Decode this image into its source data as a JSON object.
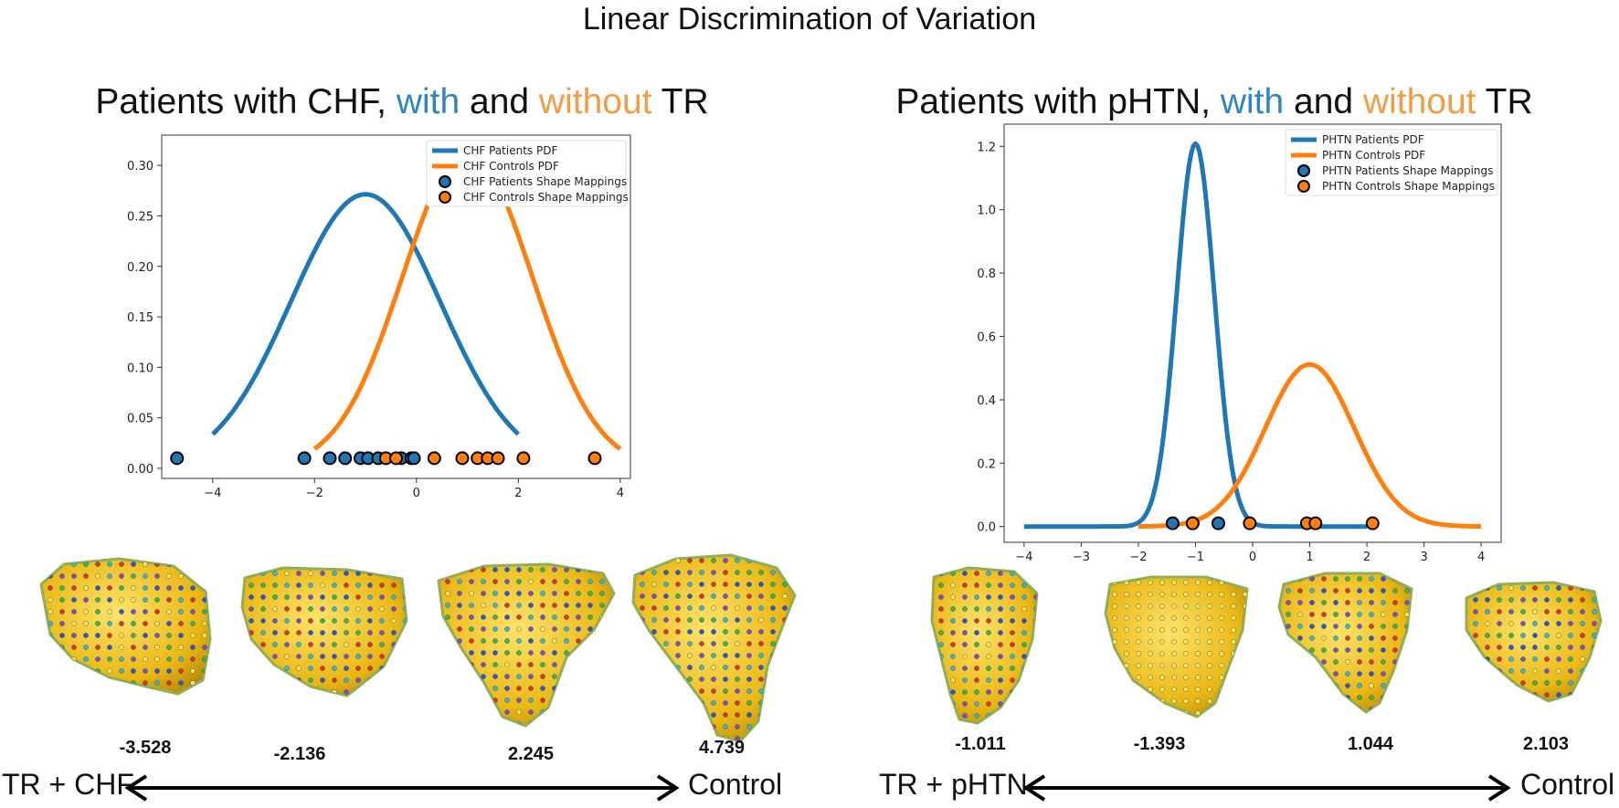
{
  "title": "Linear Discrimination of Variation",
  "panels": [
    {
      "title_parts": {
        "a": "Patients with CHF, ",
        "b": "with",
        "c": " and ",
        "d": "without",
        "e": " TR"
      },
      "scores": [
        "-3.528",
        "-2.136",
        "2.245",
        "4.739"
      ],
      "left_label": "TR + CHF",
      "right_label": "Control"
    },
    {
      "title_parts": {
        "a": "Patients with pHTN, ",
        "b": "with",
        "c": " and ",
        "d": "without",
        "e": " TR"
      },
      "scores": [
        "-1.011",
        "-1.393",
        "1.044",
        "2.103"
      ],
      "left_label": "TR + pHTN",
      "right_label": "Control"
    }
  ],
  "colors": {
    "blue": "#1f77b4",
    "orange": "#ff7f0e",
    "with_text": "#2e86c1",
    "without_text": "#f39c45",
    "shape_fill": "#f2c21a"
  },
  "chart_data": [
    {
      "type": "line",
      "title": "",
      "xlabel": "",
      "ylabel": "",
      "xlim": [
        -5,
        4.2
      ],
      "ylim": [
        -0.01,
        0.33
      ],
      "xticks": [
        "-4",
        "-2",
        "0",
        "2",
        "4"
      ],
      "xtick_values": [
        -4,
        -2,
        0,
        2,
        4
      ],
      "yticks": [
        "0.00",
        "0.05",
        "0.10",
        "0.15",
        "0.20",
        "0.25",
        "0.30"
      ],
      "ytick_values": [
        0,
        0.05,
        0.1,
        0.15,
        0.2,
        0.25,
        0.3
      ],
      "legend_position": "top-right",
      "series": [
        {
          "name": "CHF Patients PDF",
          "kind": "pdf",
          "color": "#1f77b4",
          "mean": -1.0,
          "sd": 1.47,
          "x_range": [
            -4,
            2
          ]
        },
        {
          "name": "CHF Controls PDF",
          "kind": "pdf",
          "color": "#ff7f0e",
          "mean": 1.0,
          "sd": 1.27,
          "x_range": [
            -2,
            4
          ]
        },
        {
          "name": "CHF Patients Shape Mappings",
          "kind": "points",
          "color": "#1f77b4",
          "y": 0.01,
          "x": [
            -4.7,
            -2.2,
            -1.7,
            -1.4,
            -1.1,
            -0.95,
            -0.75,
            -0.3,
            -0.1,
            -0.05
          ]
        },
        {
          "name": "CHF Controls Shape Mappings",
          "kind": "points",
          "color": "#ff7f0e",
          "y": 0.01,
          "x": [
            -0.6,
            -0.4,
            0.35,
            0.9,
            1.2,
            1.4,
            1.6,
            2.1,
            3.5
          ]
        }
      ]
    },
    {
      "type": "line",
      "title": "",
      "xlabel": "",
      "ylabel": "",
      "xlim": [
        -4.35,
        4.35
      ],
      "ylim": [
        -0.05,
        1.27
      ],
      "xticks": [
        "-4",
        "-3",
        "-2",
        "-1",
        "0",
        "1",
        "2",
        "3",
        "4"
      ],
      "xtick_values": [
        -4,
        -3,
        -2,
        -1,
        0,
        1,
        2,
        3,
        4
      ],
      "yticks": [
        "0.0",
        "0.2",
        "0.4",
        "0.6",
        "0.8",
        "1.0",
        "1.2"
      ],
      "ytick_values": [
        0,
        0.2,
        0.4,
        0.6,
        0.8,
        1.0,
        1.2
      ],
      "legend_position": "top-right",
      "series": [
        {
          "name": "PHTN Patients PDF",
          "kind": "pdf",
          "color": "#1f77b4",
          "mean": -1.0,
          "sd": 0.33,
          "x_range": [
            -4,
            2
          ]
        },
        {
          "name": "PHTN Controls PDF",
          "kind": "pdf",
          "color": "#ff7f0e",
          "mean": 1.0,
          "sd": 0.78,
          "x_range": [
            -2,
            4
          ]
        },
        {
          "name": "PHTN Patients Shape Mappings",
          "kind": "points",
          "color": "#1f77b4",
          "y": 0.01,
          "x": [
            -1.4,
            -1.05,
            -0.6
          ]
        },
        {
          "name": "PHTN Controls Shape Mappings",
          "kind": "points",
          "color": "#ff7f0e",
          "y": 0.01,
          "x": [
            -1.05,
            -0.05,
            0.95,
            1.1,
            2.1
          ]
        }
      ]
    }
  ]
}
